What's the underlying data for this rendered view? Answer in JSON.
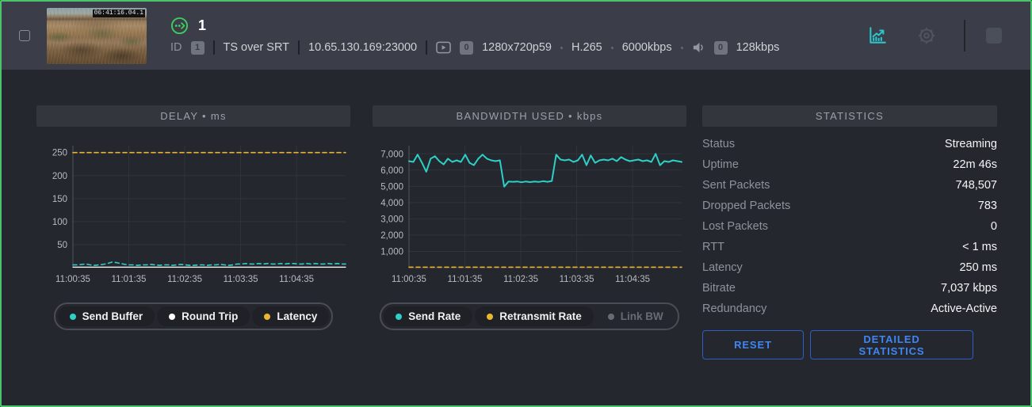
{
  "header": {
    "title": "1",
    "thumbnail_timecode": "06:41:16.04.1",
    "id_label": "ID",
    "id_value": "1",
    "protocol": "TS over SRT",
    "address": "10.65.130.169:23000",
    "video_track_count": "0",
    "resolution": "1280x720p59",
    "codec": "H.265",
    "video_bitrate": "6000kbps",
    "audio_track_count": "0",
    "audio_bitrate": "128kbps"
  },
  "colors": {
    "green_border": "#4ac46c",
    "green_status": "#3fcb5f",
    "teal_accent": "#2dd0c6",
    "yellow_accent": "#eab531",
    "blue_button": "#3f86f4",
    "disabled_gray": "#666b74"
  },
  "chart_data": [
    {
      "type": "line",
      "title": "DELAY • ms",
      "xlabel": "",
      "ylabel": "ms",
      "ylim": [
        0,
        265
      ],
      "grid": true,
      "legend_position": "bottom",
      "x_ticks": [
        "11:00:35",
        "11:01:35",
        "11:02:35",
        "11:03:35",
        "11:04:35"
      ],
      "y_ticks": [
        50,
        100,
        150,
        200,
        250
      ],
      "y_tick_labels": [
        "50",
        "100",
        "150",
        "200",
        "250"
      ],
      "series": [
        {
          "name": "Send Buffer",
          "color": "#2dd0c6",
          "dash": true,
          "width": 1.6,
          "values": [
            6,
            6,
            7,
            8,
            6,
            5,
            6,
            7,
            9,
            12,
            11,
            9,
            7,
            6,
            6,
            5,
            6,
            6,
            7,
            6,
            5,
            6,
            6,
            5,
            6,
            7,
            6,
            5,
            5,
            6,
            6,
            5,
            6,
            6,
            7,
            6,
            5,
            6,
            8,
            8,
            9,
            8,
            8,
            9,
            8,
            9,
            8,
            8,
            9,
            8,
            9,
            9,
            8,
            8,
            9,
            8,
            9,
            8,
            8,
            9,
            8,
            9,
            8,
            8
          ]
        },
        {
          "name": "Round Trip",
          "color": "#ffffff",
          "dash": false,
          "width": 1.2,
          "values": [
            1,
            1
          ]
        },
        {
          "name": "Latency",
          "color": "#eab531",
          "dash": true,
          "width": 1.6,
          "values": [
            250,
            250
          ]
        }
      ],
      "legend": [
        {
          "label": "Send Buffer",
          "color": "#2dd0c6",
          "enabled": true
        },
        {
          "label": "Round Trip",
          "color": "#ffffff",
          "enabled": true
        },
        {
          "label": "Latency",
          "color": "#eab531",
          "enabled": true
        }
      ]
    },
    {
      "type": "line",
      "title": "BANDWIDTH USED • kbps",
      "xlabel": "",
      "ylabel": "kbps",
      "ylim": [
        0,
        7500
      ],
      "grid": true,
      "legend_position": "bottom",
      "x_ticks": [
        "11:00:35",
        "11:01:35",
        "11:02:35",
        "11:03:35",
        "11:04:35"
      ],
      "y_ticks": [
        1000,
        2000,
        3000,
        4000,
        5000,
        6000,
        7000
      ],
      "y_tick_labels": [
        "1,000",
        "2,000",
        "3,000",
        "4,000",
        "5,000",
        "6,000",
        "7,000"
      ],
      "series": [
        {
          "name": "Send Rate",
          "color": "#2dd0c6",
          "dash": false,
          "width": 2,
          "values": [
            6550,
            6500,
            6950,
            6450,
            5900,
            6700,
            6850,
            6550,
            6350,
            6700,
            6500,
            6600,
            6500,
            6950,
            6450,
            6300,
            6700,
            6950,
            6700,
            6600,
            6550,
            6600,
            4980,
            5300,
            5280,
            5300,
            5250,
            5300,
            5260,
            5300,
            5270,
            5320,
            5280,
            5330,
            6950,
            6650,
            6600,
            6650,
            6500,
            6600,
            6950,
            6300,
            6900,
            6450,
            6600,
            6650,
            6600,
            6700,
            6550,
            6800,
            6650,
            6550,
            6600,
            6650,
            6550,
            6600,
            6500,
            7000,
            6300,
            6550,
            6500,
            6600,
            6550,
            6500
          ]
        },
        {
          "name": "Retransmit Rate",
          "color": "#eab531",
          "dash": true,
          "width": 1.6,
          "values": [
            30,
            30
          ]
        },
        {
          "name": "Link BW",
          "color": "#666b74",
          "dash": false,
          "width": 1.2,
          "values": []
        }
      ],
      "legend": [
        {
          "label": "Send Rate",
          "color": "#2dd0c6",
          "enabled": true
        },
        {
          "label": "Retransmit Rate",
          "color": "#eab531",
          "enabled": true
        },
        {
          "label": "Link BW",
          "color": "#666b74",
          "enabled": false
        }
      ]
    }
  ],
  "statistics": {
    "title": "STATISTICS",
    "rows": [
      {
        "label": "Status",
        "value": "Streaming"
      },
      {
        "label": "Uptime",
        "value": "22m 46s"
      },
      {
        "label": "Sent Packets",
        "value": "748,507"
      },
      {
        "label": "Dropped Packets",
        "value": "783"
      },
      {
        "label": "Lost Packets",
        "value": "0"
      },
      {
        "label": "RTT",
        "value": "< 1 ms"
      },
      {
        "label": "Latency",
        "value": "250 ms"
      },
      {
        "label": "Bitrate",
        "value": "7,037 kbps"
      },
      {
        "label": "Redundancy",
        "value": "Active-Active"
      }
    ],
    "buttons": {
      "reset": "RESET",
      "detailed": "DETAILED STATISTICS"
    }
  }
}
